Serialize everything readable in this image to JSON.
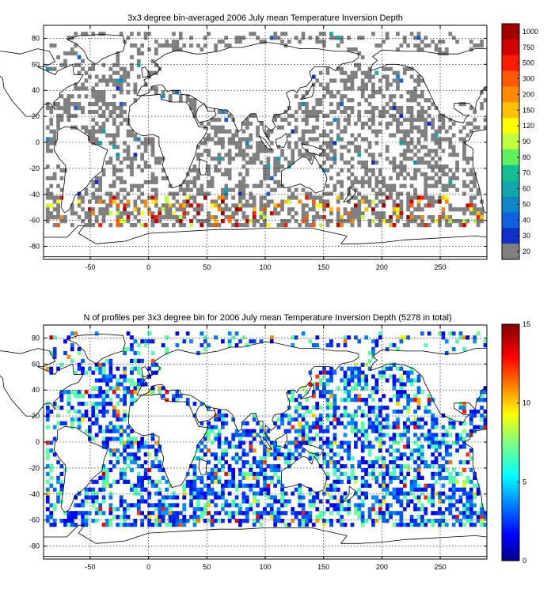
{
  "chart_data": [
    {
      "type": "heatmap",
      "title": "3x3 degree bin-averaged 2006 July mean Temperature Inversion Depth",
      "xlabel": "",
      "ylabel": "",
      "xlim": [
        -90,
        290
      ],
      "ylim": [
        -90,
        90
      ],
      "xticks": [
        "-50",
        "0",
        "50",
        "100",
        "150",
        "200",
        "250"
      ],
      "xtick_values": [
        -50,
        0,
        50,
        100,
        150,
        200,
        250
      ],
      "yticks": [
        "80",
        "60",
        "40",
        "20",
        "0",
        "-20",
        "-40",
        "-60",
        "-80"
      ],
      "ytick_values": [
        80,
        60,
        40,
        20,
        0,
        -20,
        -40,
        -60,
        -80
      ],
      "grid": true,
      "bin_size_deg": 3,
      "colorbar": {
        "labels": [
          "1000",
          "750",
          "500",
          "300",
          "200",
          "150",
          "120",
          "90",
          "80",
          "70",
          "60",
          "50",
          "40",
          "30",
          "20"
        ],
        "colors": [
          "#a50000",
          "#d40000",
          "#ff1a00",
          "#ff5a00",
          "#ff8a00",
          "#ffc000",
          "#ffff00",
          "#c0ff40",
          "#60f060",
          "#10c090",
          "#10a8a8",
          "#1088c8",
          "#1060e0",
          "#1030c8",
          "#808080"
        ]
      }
    },
    {
      "type": "heatmap",
      "title": "N of profiles per 3x3 degree bin for 2006 July mean Temperature Inversion Depth  (5278 in total)",
      "xlabel": "",
      "ylabel": "",
      "xlim": [
        -90,
        290
      ],
      "ylim": [
        -90,
        90
      ],
      "xticks": [
        "-50",
        "0",
        "50",
        "100",
        "150",
        "200",
        "250"
      ],
      "xtick_values": [
        -50,
        0,
        50,
        100,
        150,
        200,
        250
      ],
      "yticks": [
        "80",
        "60",
        "40",
        "20",
        "0",
        "-20",
        "-40",
        "-60",
        "-80"
      ],
      "ytick_values": [
        80,
        60,
        40,
        20,
        0,
        -20,
        -40,
        -60,
        -80
      ],
      "grid": true,
      "bin_size_deg": 3,
      "total_profiles": 5278,
      "colorbar": {
        "labels": [
          "15",
          "10",
          "5",
          "0"
        ],
        "values": [
          15,
          10,
          5,
          0
        ],
        "range": [
          0,
          15
        ],
        "colormap": "jet"
      }
    }
  ]
}
